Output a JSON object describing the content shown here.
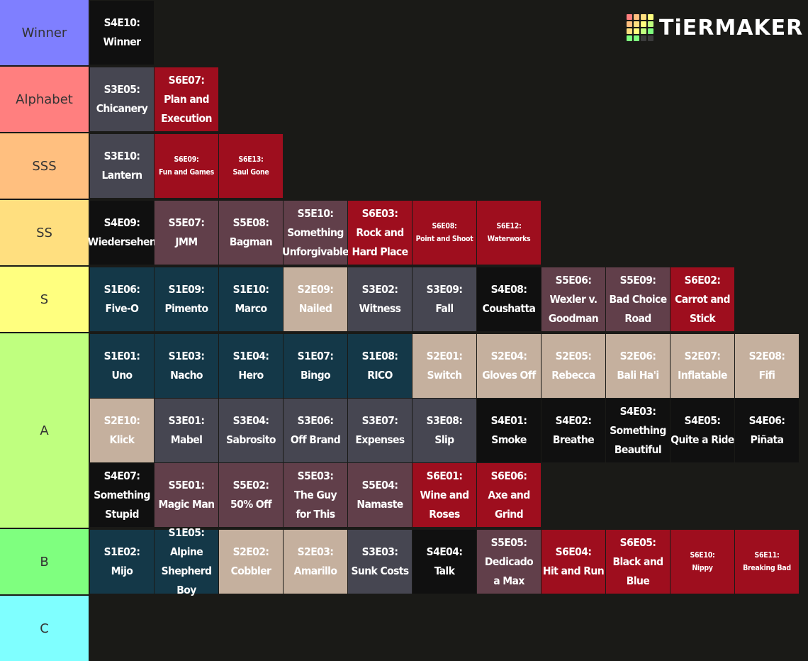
{
  "logo": {
    "text": "TiERMAKER",
    "grid_colors": [
      "#ff7f7f",
      "#ffbf7f",
      "#ffdf7f",
      "#ffff7f",
      "#ffbf7f",
      "#ffdf7f",
      "#ffff7f",
      "#bfff7f",
      "#ffdf7f",
      "#ffff7f",
      "#bfff7f",
      "#7fff7f",
      "#7fff7f",
      "#7fff7f",
      "#3c3c3c",
      "#3c3c3c"
    ]
  },
  "palette": {
    "teal": "#143848",
    "slate": "#464651",
    "beige": "#c5b09e",
    "black": "#101010",
    "plum": "#613f4a",
    "red": "#9e0e1e",
    "row_bg": "#1a1a17"
  },
  "tiers": [
    {
      "label": "Winner",
      "color": "#7f7fff",
      "items": [
        {
          "text": "S4E10:\nWinner",
          "c": "black"
        }
      ]
    },
    {
      "label": "Alphabet",
      "color": "#ff7f7f",
      "items": [
        {
          "text": "S3E05:\nChicanery",
          "c": "slate"
        },
        {
          "text": "S6E07:\nPlan and\nExecution",
          "c": "red"
        }
      ]
    },
    {
      "label": "SSS",
      "color": "#ffbf7f",
      "items": [
        {
          "text": "S3E10:\nLantern",
          "c": "slate"
        },
        {
          "text": "S6E09:\nFun and Games",
          "c": "red",
          "small": true
        },
        {
          "text": "S6E13:\nSaul Gone",
          "c": "red",
          "small": true
        }
      ]
    },
    {
      "label": "SS",
      "color": "#ffdf7f",
      "items": [
        {
          "text": "S4E09:\nWiedersehen",
          "c": "black"
        },
        {
          "text": "S5E07:\nJMM",
          "c": "plum"
        },
        {
          "text": "S5E08:\nBagman",
          "c": "plum"
        },
        {
          "text": "S5E10:\nSomething\nUnforgivable",
          "c": "plum"
        },
        {
          "text": "S6E03:\nRock and\nHard Place",
          "c": "red"
        },
        {
          "text": "S6E08:\nPoint and Shoot",
          "c": "red",
          "small": true
        },
        {
          "text": "S6E12:\nWaterworks",
          "c": "red",
          "small": true
        }
      ]
    },
    {
      "label": "S",
      "color": "#ffff7f",
      "items": [
        {
          "text": "S1E06:\nFive-O",
          "c": "teal"
        },
        {
          "text": "S1E09:\nPimento",
          "c": "teal"
        },
        {
          "text": "S1E10:\nMarco",
          "c": "teal"
        },
        {
          "text": "S2E09:\nNailed",
          "c": "beige"
        },
        {
          "text": "S3E02:\nWitness",
          "c": "slate"
        },
        {
          "text": "S3E09:\nFall",
          "c": "slate"
        },
        {
          "text": "S4E08:\nCoushatta",
          "c": "black"
        },
        {
          "text": "S5E06:\nWexler v.\nGoodman",
          "c": "plum"
        },
        {
          "text": "S5E09:\nBad Choice\nRoad",
          "c": "plum"
        },
        {
          "text": "S6E02:\nCarrot and\nStick",
          "c": "red"
        }
      ]
    },
    {
      "label": "A",
      "color": "#bfff7f",
      "items": [
        {
          "text": "S1E01:\nUno",
          "c": "teal"
        },
        {
          "text": "S1E03:\nNacho",
          "c": "teal"
        },
        {
          "text": "S1E04:\nHero",
          "c": "teal"
        },
        {
          "text": "S1E07:\nBingo",
          "c": "teal"
        },
        {
          "text": "S1E08:\nRICO",
          "c": "teal"
        },
        {
          "text": "S2E01:\nSwitch",
          "c": "beige"
        },
        {
          "text": "S2E04:\nGloves Off",
          "c": "beige"
        },
        {
          "text": "S2E05:\nRebecca",
          "c": "beige"
        },
        {
          "text": "S2E06:\nBali Ha'i",
          "c": "beige"
        },
        {
          "text": "S2E07:\nInflatable",
          "c": "beige"
        },
        {
          "text": "S2E08:\nFifi",
          "c": "beige"
        },
        {
          "text": "S2E10:\nKlick",
          "c": "beige"
        },
        {
          "text": "S3E01:\nMabel",
          "c": "slate"
        },
        {
          "text": "S3E04:\nSabrosito",
          "c": "slate"
        },
        {
          "text": "S3E06:\nOff Brand",
          "c": "slate"
        },
        {
          "text": "S3E07:\nExpenses",
          "c": "slate"
        },
        {
          "text": "S3E08:\nSlip",
          "c": "slate"
        },
        {
          "text": "S4E01:\nSmoke",
          "c": "black"
        },
        {
          "text": "S4E02:\nBreathe",
          "c": "black"
        },
        {
          "text": "S4E03:\nSomething\nBeautiful",
          "c": "black"
        },
        {
          "text": "S4E05:\nQuite a Ride",
          "c": "black"
        },
        {
          "text": "S4E06:\nPiñata",
          "c": "black"
        },
        {
          "text": "S4E07:\nSomething\nStupid",
          "c": "black"
        },
        {
          "text": "S5E01:\nMagic Man",
          "c": "plum"
        },
        {
          "text": "S5E02:\n50% Off",
          "c": "plum"
        },
        {
          "text": "S5E03:\nThe Guy\nfor This",
          "c": "plum"
        },
        {
          "text": "S5E04:\nNamaste",
          "c": "plum"
        },
        {
          "text": "S6E01:\nWine and\nRoses",
          "c": "red"
        },
        {
          "text": "S6E06:\nAxe and Grind",
          "c": "red"
        }
      ]
    },
    {
      "label": "B",
      "color": "#7fff7f",
      "items": [
        {
          "text": "S1E02:\nMijo",
          "c": "teal"
        },
        {
          "text": "S1E05:\nAlpine\nShepherd Boy",
          "c": "teal"
        },
        {
          "text": "S2E02:\nCobbler",
          "c": "beige"
        },
        {
          "text": "S2E03:\nAmarillo",
          "c": "beige"
        },
        {
          "text": "S3E03:\nSunk Costs",
          "c": "slate"
        },
        {
          "text": "S4E04:\nTalk",
          "c": "black"
        },
        {
          "text": "S5E05:\nDedicado\na Max",
          "c": "plum"
        },
        {
          "text": "S6E04:\nHit and Run",
          "c": "red"
        },
        {
          "text": "S6E05:\nBlack and Blue",
          "c": "red"
        },
        {
          "text": "S6E10:\nNippy",
          "c": "red",
          "small": true
        },
        {
          "text": "S6E11:\nBreaking Bad",
          "c": "red",
          "small": true
        }
      ]
    },
    {
      "label": "C",
      "color": "#7fffff",
      "items": []
    }
  ]
}
